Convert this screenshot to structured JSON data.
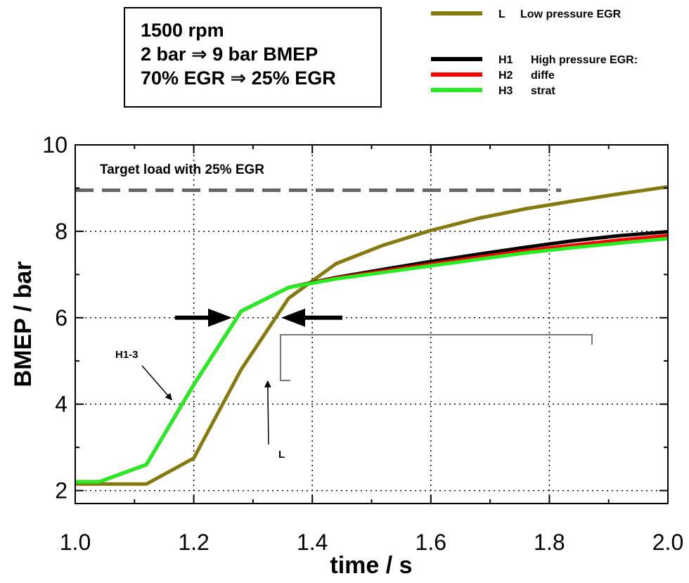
{
  "info_box": {
    "line1": "1500 rpm",
    "line2": "2 bar ⇒ 9 bar BMEP",
    "line3": "70% EGR ⇒ 25% EGR"
  },
  "chart_data": {
    "type": "line",
    "xlabel": "time / s",
    "ylabel": "BMEP / bar",
    "xlim": [
      1.0,
      2.0
    ],
    "ylim": [
      1.7,
      10
    ],
    "x_ticks": [
      "1.0",
      "1.2",
      "1.4",
      "1.6",
      "1.8",
      "2.0"
    ],
    "y_ticks": [
      "2",
      "4",
      "6",
      "8",
      "10"
    ],
    "grid": "dotted",
    "legend_position": "top-right",
    "series": [
      {
        "key": "L",
        "name": "Low pressure EGR",
        "color": "#857a10",
        "x": [
          1.0,
          1.12,
          1.2,
          1.28,
          1.36,
          1.44,
          1.52,
          1.6,
          1.68,
          1.76,
          1.84,
          1.92,
          2.0
        ],
        "y": [
          2.15,
          2.15,
          2.75,
          4.8,
          6.45,
          7.25,
          7.68,
          8.02,
          8.3,
          8.52,
          8.7,
          8.87,
          9.03
        ]
      },
      {
        "key": "H1",
        "name": "High pressure EGR:",
        "color": "#000000",
        "x": [
          1.0,
          1.04,
          1.12,
          1.2,
          1.28,
          1.36,
          1.44,
          1.52,
          1.6,
          1.68,
          1.76,
          1.84,
          1.92,
          2.0
        ],
        "y": [
          2.2,
          2.2,
          2.6,
          4.45,
          6.15,
          6.7,
          6.93,
          7.12,
          7.3,
          7.47,
          7.63,
          7.78,
          7.9,
          7.99
        ]
      },
      {
        "key": "H2",
        "name": "diffe",
        "color": "#ff0000",
        "x": [
          1.0,
          1.04,
          1.12,
          1.2,
          1.28,
          1.36,
          1.44,
          1.52,
          1.6,
          1.68,
          1.76,
          1.84,
          1.92,
          2.0
        ],
        "y": [
          2.2,
          2.2,
          2.6,
          4.45,
          6.15,
          6.7,
          6.92,
          7.08,
          7.24,
          7.4,
          7.55,
          7.68,
          7.8,
          7.9
        ]
      },
      {
        "key": "H3",
        "name": "strat",
        "color": "#22ee22",
        "x": [
          1.0,
          1.04,
          1.12,
          1.2,
          1.28,
          1.36,
          1.44,
          1.52,
          1.6,
          1.68,
          1.76,
          1.84,
          1.92,
          2.0
        ],
        "y": [
          2.2,
          2.2,
          2.6,
          4.45,
          6.15,
          6.7,
          6.9,
          7.05,
          7.2,
          7.35,
          7.5,
          7.62,
          7.73,
          7.83
        ]
      }
    ],
    "target_line": {
      "y": 8.95,
      "x_start": 1.0,
      "x_end": 1.82,
      "label": "Target load with 25% EGR",
      "color": "#666666"
    },
    "annotations": [
      {
        "text": "H1-3",
        "points_to": [
          1.17,
          4.0
        ]
      },
      {
        "text": "L",
        "points_to": [
          1.32,
          4.6
        ]
      }
    ]
  }
}
